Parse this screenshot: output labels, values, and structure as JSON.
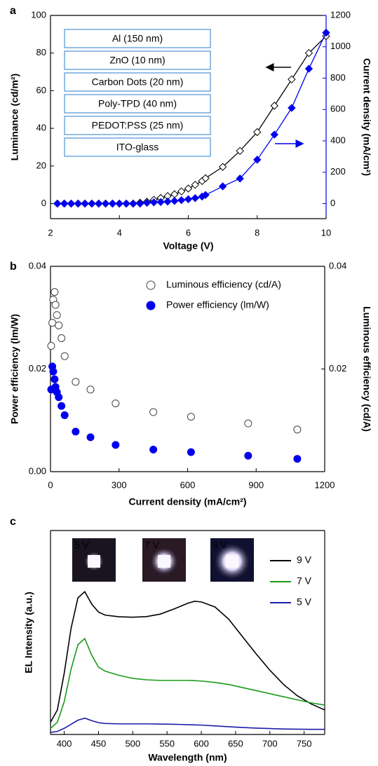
{
  "chart_data": [
    {
      "type": "scatter",
      "panel_label": "a",
      "lines": true,
      "x_label": "Voltage (V)",
      "y_label": "Luminance (cd/m²)",
      "y2_label": "Current density (mA/cm²)",
      "y2_color": "#0000ee",
      "xlim": [
        2,
        10
      ],
      "xticks": [
        2,
        4,
        6,
        8,
        10
      ],
      "ylim": [
        -8,
        100
      ],
      "yticks": [
        0,
        20,
        40,
        60,
        80,
        100
      ],
      "y2lim": [
        -96,
        1200
      ],
      "y2ticks": [
        0,
        200,
        400,
        600,
        800,
        1000,
        1200
      ],
      "annotations": [
        "Al (150 nm)",
        "ZnO (10 nm)",
        "Carbon Dots (20 nm)",
        "Poly-TPD (40 nm)",
        "PEDOT:PSS (25 nm)",
        "ITO-glass"
      ],
      "x": [
        2.2,
        2.4,
        2.6,
        2.8,
        3.0,
        3.2,
        3.4,
        3.6,
        3.8,
        4.0,
        4.2,
        4.4,
        4.6,
        4.8,
        5.0,
        5.2,
        5.4,
        5.6,
        5.8,
        6.0,
        6.2,
        6.4,
        6.5,
        7.0,
        7.5,
        8.0,
        8.5,
        9.0,
        9.5,
        10
      ],
      "series": [
        {
          "color": "#000000",
          "marker": "diamond-open",
          "values": [
            0,
            0,
            0,
            0,
            0,
            0,
            0,
            0,
            0,
            0,
            0,
            0,
            0.5,
            1,
            2,
            3,
            4,
            5,
            6.5,
            8,
            10,
            12,
            13.5,
            19.5,
            28,
            38,
            52,
            66,
            80,
            89
          ]
        },
        {
          "color": "#0000ee",
          "marker": "diamond",
          "axis": "y2",
          "values": [
            0,
            0,
            0,
            0,
            0,
            0,
            0,
            0,
            0,
            0,
            0,
            0,
            0,
            5,
            8,
            10,
            13,
            17,
            22,
            28,
            35,
            45,
            55,
            110,
            160,
            280,
            440,
            610,
            860,
            1090
          ]
        }
      ]
    },
    {
      "type": "scatter",
      "panel_label": "b",
      "legend": "upper right",
      "x_label": "Current density (mA/cm²)",
      "y_label": "Power efficiency (lm/W)",
      "y2_label": "Luminous efficiency (cd/A)",
      "xlim": [
        0,
        1200
      ],
      "xticks": [
        0,
        300,
        600,
        900,
        1200
      ],
      "ylim": [
        0,
        0.04
      ],
      "yticks": [
        {
          "value": 0,
          "label": "0.00"
        },
        0.02,
        0.04
      ],
      "y2lim": [
        0,
        0.04
      ],
      "y2ticks": [
        0.02,
        0.04
      ],
      "x": [
        3,
        8,
        12,
        18,
        22,
        28,
        36,
        48,
        62,
        110,
        175,
        285,
        450,
        615,
        865,
        1080
      ],
      "series": [
        {
          "name": "Luminous efficiency (cd/A)",
          "color": "#444444",
          "marker": "circle-open",
          "axis": "y2",
          "values": [
            0.0245,
            0.029,
            0.0335,
            0.035,
            0.0325,
            0.0305,
            0.0285,
            0.026,
            0.0225,
            0.0175,
            0.016,
            0.0133,
            0.0116,
            0.0107,
            0.0094,
            0.0082
          ]
        },
        {
          "name": "Power efficiency (lm/W)",
          "color": "#0000ee",
          "marker": "circle",
          "values": [
            0.016,
            0.0205,
            0.0195,
            0.018,
            0.0165,
            0.0155,
            0.0145,
            0.0128,
            0.011,
            0.0078,
            0.0067,
            0.0052,
            0.0043,
            0.0038,
            0.0031,
            0.0025
          ]
        }
      ]
    },
    {
      "type": "line",
      "panel_label": "c",
      "legend": "upper right",
      "x_label": "Wavelength (nm)",
      "y_label": "EL Intensity (a.u.)",
      "xlim": [
        380,
        780
      ],
      "xticks": [
        400,
        450,
        500,
        550,
        600,
        650,
        700,
        750
      ],
      "ylim": [
        0,
        1
      ],
      "inset_labels": [
        "5 V",
        "7 V",
        "9 V"
      ],
      "x": [
        380,
        390,
        400,
        410,
        420,
        430,
        440,
        450,
        460,
        480,
        500,
        520,
        540,
        560,
        580,
        590,
        600,
        620,
        640,
        660,
        680,
        700,
        720,
        740,
        760,
        780
      ],
      "series": [
        {
          "name": "9 V",
          "color": "#000000",
          "values": [
            0.06,
            0.12,
            0.3,
            0.52,
            0.67,
            0.7,
            0.64,
            0.6,
            0.585,
            0.577,
            0.575,
            0.578,
            0.59,
            0.615,
            0.643,
            0.653,
            0.65,
            0.625,
            0.565,
            0.48,
            0.395,
            0.315,
            0.245,
            0.19,
            0.15,
            0.12
          ]
        },
        {
          "name": "7 V",
          "color": "#1a9a1a",
          "values": [
            0.03,
            0.06,
            0.16,
            0.32,
            0.44,
            0.47,
            0.39,
            0.33,
            0.31,
            0.29,
            0.275,
            0.268,
            0.265,
            0.265,
            0.265,
            0.264,
            0.262,
            0.255,
            0.245,
            0.23,
            0.215,
            0.2,
            0.185,
            0.17,
            0.155,
            0.144
          ]
        },
        {
          "name": "5 V",
          "color": "#1c1ca8",
          "values": [
            0.01,
            0.015,
            0.03,
            0.05,
            0.07,
            0.08,
            0.068,
            0.058,
            0.054,
            0.052,
            0.052,
            0.052,
            0.051,
            0.05,
            0.048,
            0.047,
            0.046,
            0.042,
            0.038,
            0.034,
            0.031,
            0.029,
            0.027,
            0.026,
            0.025,
            0.025
          ]
        }
      ]
    }
  ]
}
